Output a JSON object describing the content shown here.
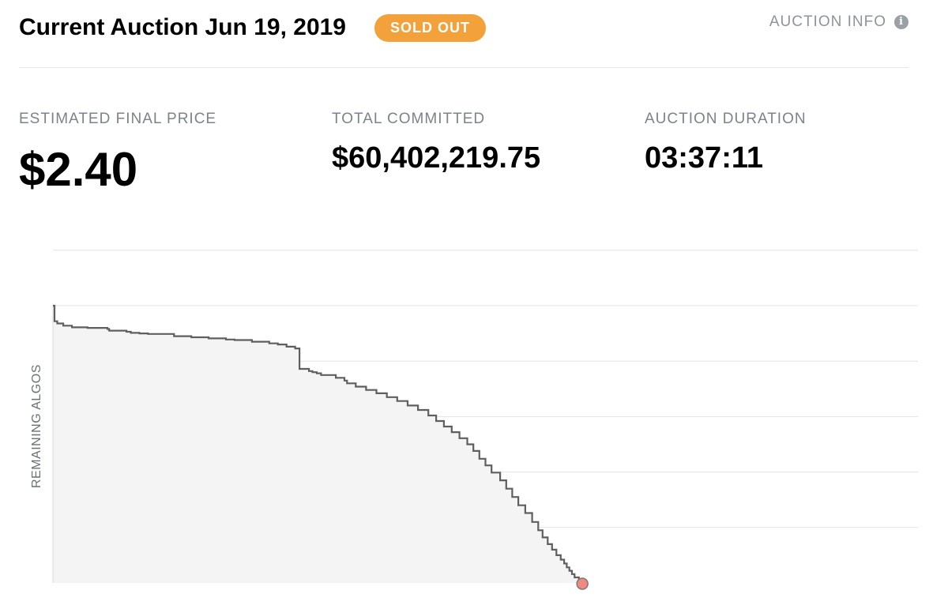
{
  "header": {
    "title": "Current Auction Jun 19, 2019",
    "status_badge": "SOLD OUT",
    "info_link": "AUCTION INFO",
    "info_icon": "info-icon"
  },
  "stats": {
    "price": {
      "label": "ESTIMATED FINAL PRICE",
      "value": "$2.40"
    },
    "committed": {
      "label": "TOTAL COMMITTED",
      "value": "$60,402,219.75"
    },
    "duration": {
      "label": "AUCTION DURATION",
      "value": "03:37:11"
    }
  },
  "colors": {
    "badge": "#f3a23b",
    "line": "#5f5f5f",
    "fill": "#f4f4f4",
    "grid": "#e3e3e3",
    "baseline_start": "#8fb0f0",
    "baseline_end": "#f08a8a",
    "end_marker": "#f08a80"
  },
  "chart_data": {
    "type": "area",
    "ylabel": "REMAINING ALGOS",
    "xlabel": "",
    "grid": true,
    "xlim": [
      0,
      1
    ],
    "ylim": [
      0,
      5
    ],
    "step": true,
    "x": [
      0,
      0.0018,
      0.005,
      0.012,
      0.022,
      0.04,
      0.063,
      0.065,
      0.085,
      0.09,
      0.1,
      0.11,
      0.14,
      0.16,
      0.18,
      0.2,
      0.21,
      0.23,
      0.25,
      0.26,
      0.27,
      0.28,
      0.285,
      0.296,
      0.3,
      0.305,
      0.31,
      0.327,
      0.337,
      0.34,
      0.35,
      0.362,
      0.374,
      0.386,
      0.398,
      0.41,
      0.422,
      0.434,
      0.443,
      0.452,
      0.461,
      0.47,
      0.479,
      0.486,
      0.493,
      0.5,
      0.507,
      0.517,
      0.524,
      0.531,
      0.538,
      0.546,
      0.554,
      0.561,
      0.566,
      0.572,
      0.577,
      0.582,
      0.587,
      0.591,
      0.594,
      0.597,
      0.6,
      0.603,
      0.608,
      0.612
    ],
    "values": [
      5.0,
      4.72,
      4.68,
      4.64,
      4.61,
      4.6,
      4.58,
      4.55,
      4.53,
      4.51,
      4.5,
      4.49,
      4.45,
      4.43,
      4.41,
      4.39,
      4.38,
      4.35,
      4.32,
      4.3,
      4.26,
      4.23,
      3.86,
      3.82,
      3.8,
      3.78,
      3.75,
      3.7,
      3.65,
      3.6,
      3.54,
      3.48,
      3.42,
      3.35,
      3.28,
      3.2,
      3.12,
      3.02,
      2.92,
      2.82,
      2.72,
      2.61,
      2.5,
      2.38,
      2.24,
      2.12,
      1.99,
      1.85,
      1.7,
      1.55,
      1.4,
      1.26,
      1.1,
      0.95,
      0.82,
      0.7,
      0.6,
      0.5,
      0.42,
      0.35,
      0.28,
      0.22,
      0.16,
      0.1,
      0.05,
      0.0
    ],
    "end_marker": {
      "x": 0.612,
      "y": 0
    }
  }
}
